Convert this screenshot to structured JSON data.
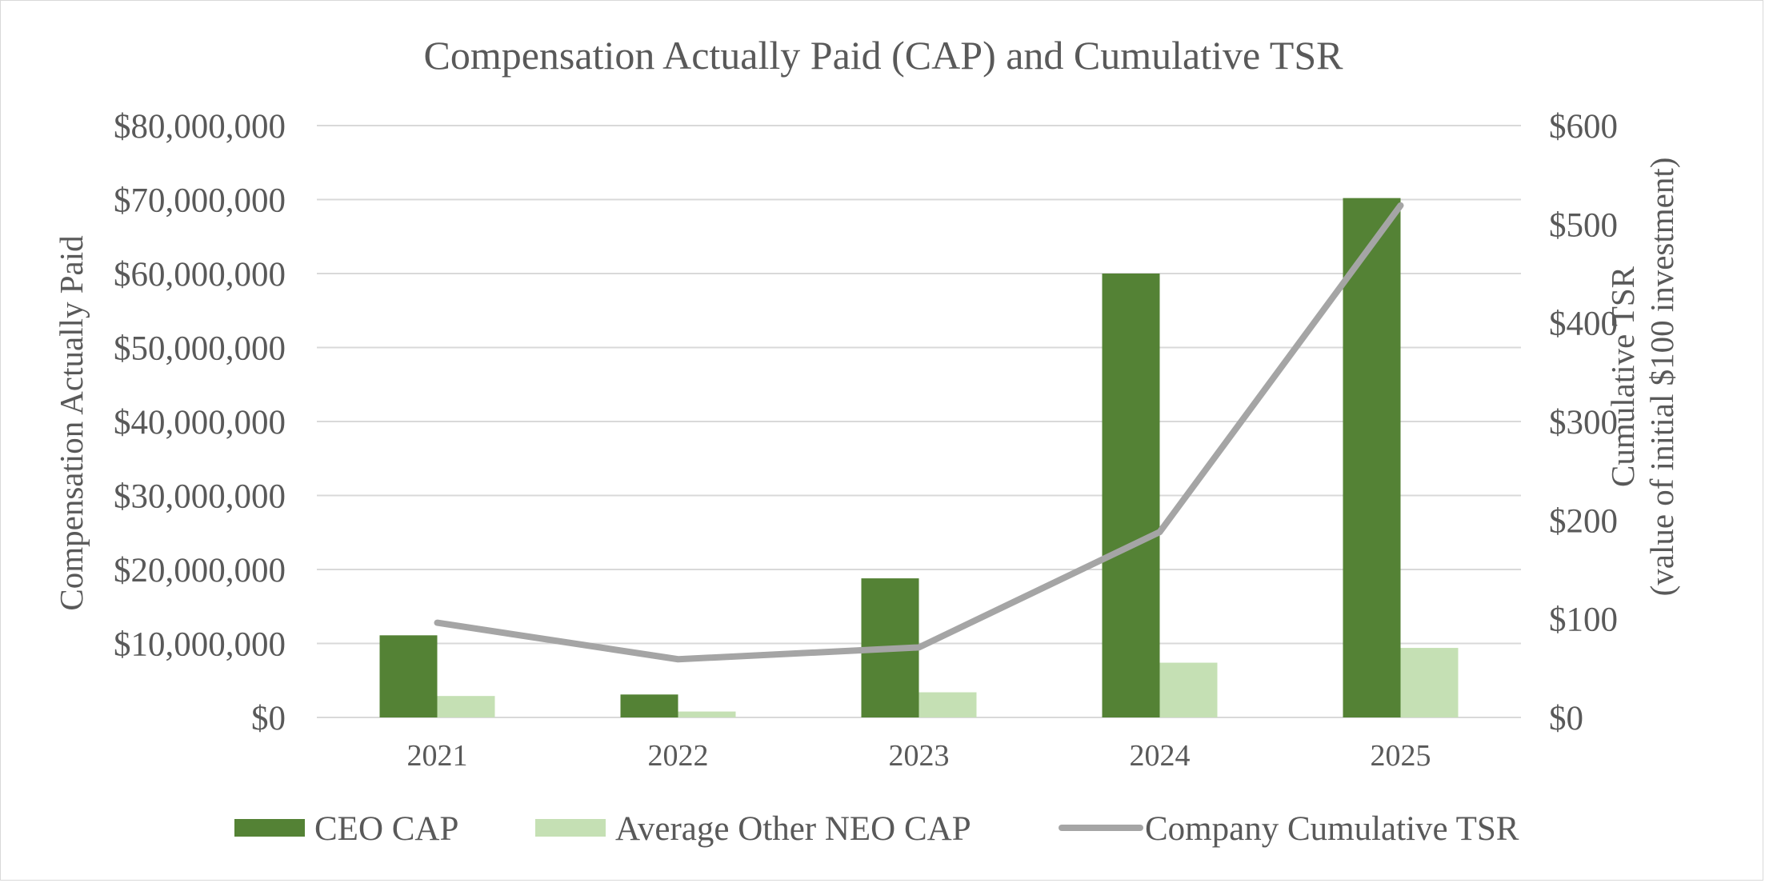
{
  "chart_data": {
    "type": "bar",
    "title": "Compensation Actually Paid (CAP) and Cumulative TSR",
    "categories": [
      "2021",
      "2022",
      "2023",
      "2024",
      "2025"
    ],
    "series": [
      {
        "name": "CEO CAP",
        "kind": "bar",
        "axis": "left",
        "color": "#548235",
        "values": [
          11100000,
          3100000,
          18800000,
          60000000,
          70200000
        ]
      },
      {
        "name": "Average Other NEO CAP",
        "kind": "bar",
        "axis": "left",
        "color": "#c5e0b4",
        "values": [
          2900000,
          800000,
          3400000,
          7400000,
          9400000
        ]
      },
      {
        "name": "Company Cumulative TSR",
        "kind": "line",
        "axis": "right",
        "color": "#a5a5a5",
        "values": [
          96,
          59,
          71,
          188,
          519
        ]
      }
    ],
    "y_left": {
      "label": "Compensation Actually Paid",
      "range": [
        0,
        80000000
      ],
      "ticks": [
        "$0",
        "$10,000,000",
        "$20,000,000",
        "$30,000,000",
        "$40,000,000",
        "$50,000,000",
        "$60,000,000",
        "$70,000,000",
        "$80,000,000"
      ]
    },
    "y_right": {
      "label_line1": "Cumulative TSR",
      "label_line2": "(value of initial $100 investment)",
      "range": [
        0,
        600
      ],
      "ticks": [
        "$0",
        "$100",
        "$200",
        "$300",
        "$400",
        "$500",
        "$600"
      ]
    },
    "grid": true,
    "legend_position": "bottom"
  }
}
